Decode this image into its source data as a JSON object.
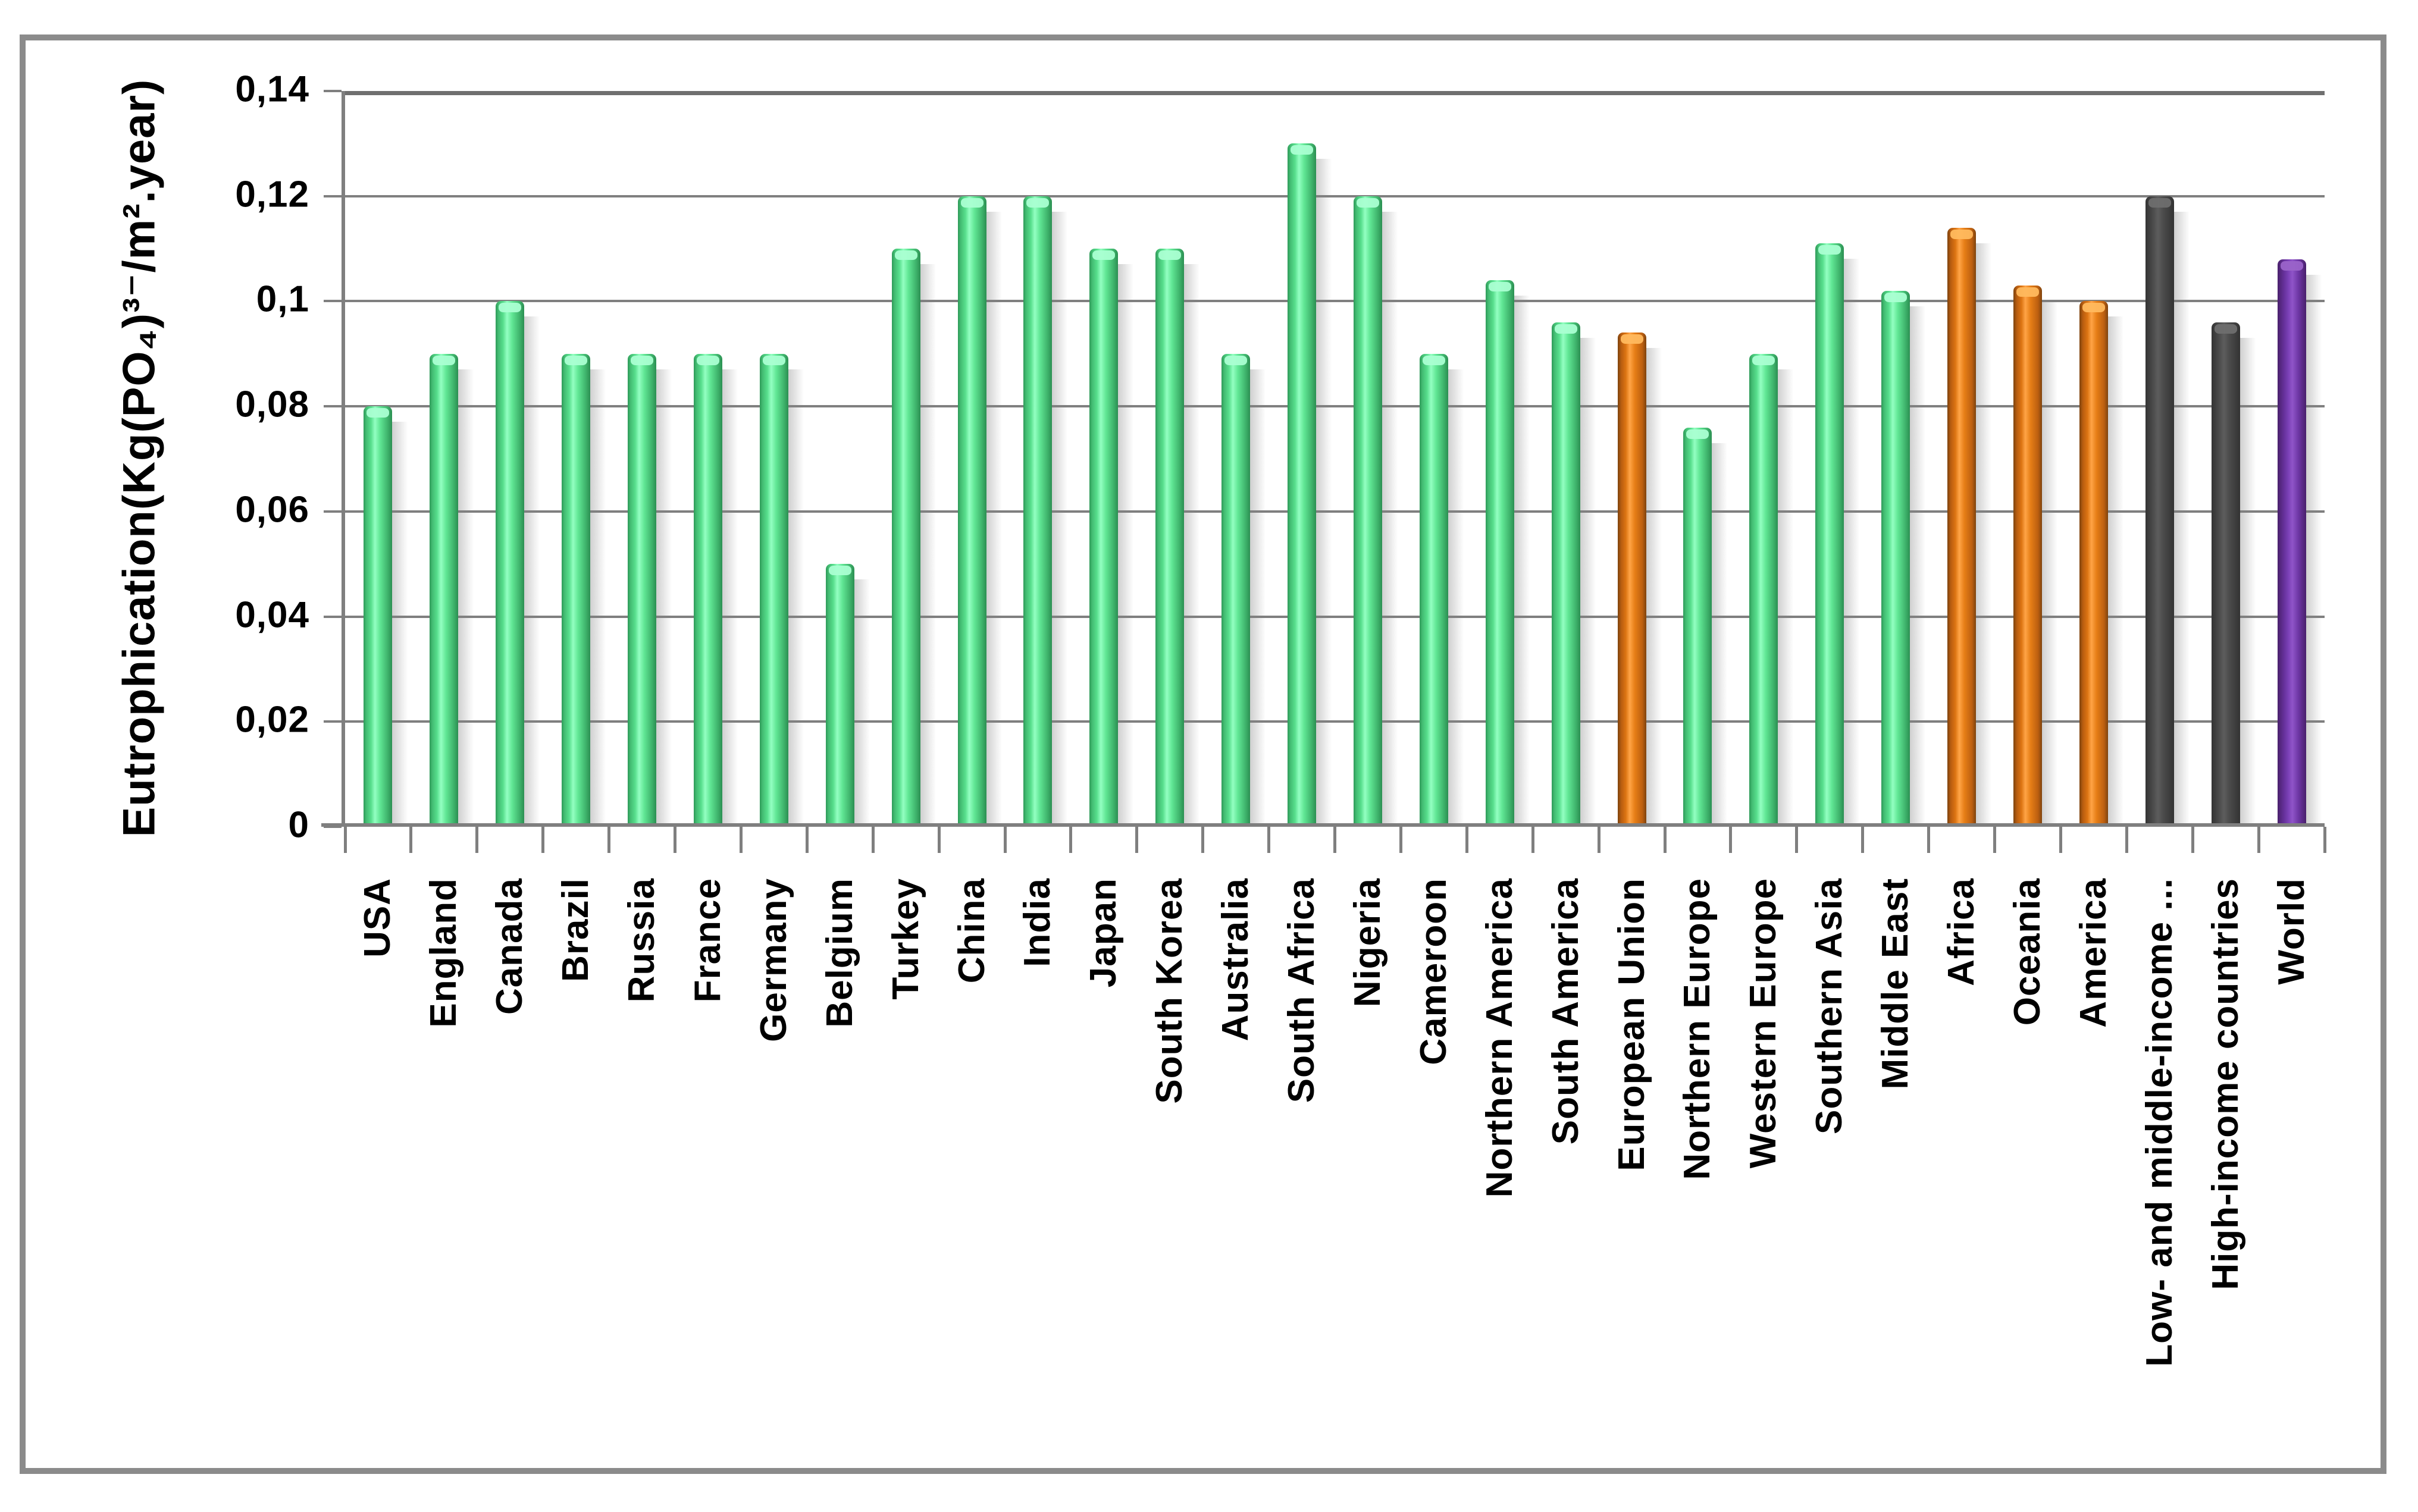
{
  "chart_data": {
    "type": "bar",
    "title": "",
    "xlabel": "",
    "ylabel": "Eutrophication(Kg(PO₄)³⁻/m².year)",
    "ylim": [
      0,
      0.14
    ],
    "grid": true,
    "legend": false,
    "ytick_labels": [
      "0,14",
      "0,12",
      "0,1",
      "0,08",
      "0,06",
      "0,04",
      "0,02",
      "0"
    ],
    "categories": [
      "USA",
      "England",
      "Canada",
      "Brazil",
      "Russia",
      "France",
      "Germany",
      "Belgium",
      "Turkey",
      "China",
      "India",
      "Japan",
      "South Korea",
      "Australia",
      "South Africa",
      "Nigeria",
      "Cameroon",
      "Northern America",
      "South America",
      "European Union",
      "Northern Europe",
      "Western Europe",
      "Southern Asia",
      "Middle East",
      "Africa",
      "Oceania",
      "America",
      "Low- and middle-income ...",
      "High-income countries",
      "World"
    ],
    "values": [
      0.08,
      0.09,
      0.1,
      0.09,
      0.09,
      0.09,
      0.09,
      0.05,
      0.11,
      0.12,
      0.12,
      0.11,
      0.11,
      0.09,
      0.13,
      0.12,
      0.09,
      0.104,
      0.096,
      0.094,
      0.076,
      0.09,
      0.111,
      0.102,
      0.114,
      0.103,
      0.1,
      0.12,
      0.096,
      0.108
    ],
    "bar_colors": [
      "green",
      "green",
      "green",
      "green",
      "green",
      "green",
      "green",
      "green",
      "green",
      "green",
      "green",
      "green",
      "green",
      "green",
      "green",
      "green",
      "green",
      "green",
      "green",
      "orange",
      "green",
      "green",
      "green",
      "green",
      "orange",
      "orange",
      "orange",
      "dark",
      "dark",
      "purple"
    ]
  },
  "palette": {
    "green": "#57DE8C",
    "orange": "#E67E16",
    "dark": "#4A4A4A",
    "purple": "#7E43BA",
    "grid": "#7F7F7F",
    "gridmax": "#6F6F6F",
    "frame": "#8B8B8B"
  }
}
